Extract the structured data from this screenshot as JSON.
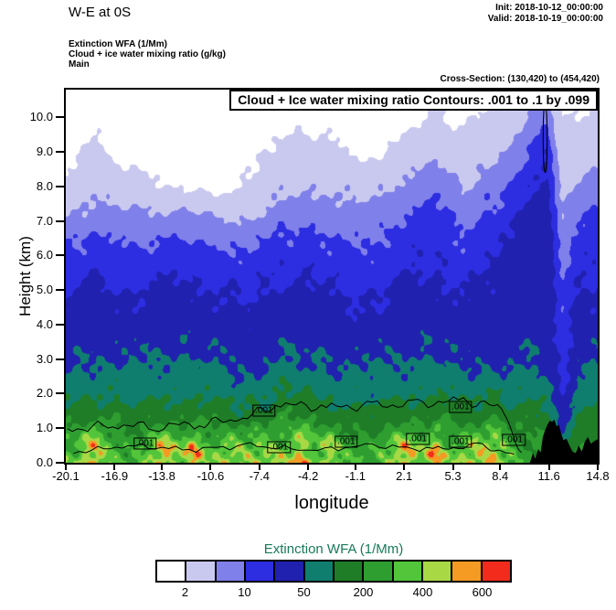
{
  "header": {
    "title": "W-E at 0S",
    "init": "Init: 2018-10-12_00:00:00",
    "valid": "Valid: 2018-10-19_00:00:00",
    "field1": "Extinction WFA  (1/Mm)",
    "field2": "Cloud + ice water mixing ratio  (g/kg)",
    "field3": "Main",
    "cross_section": "Cross-Section: (130,420) to (454,420)"
  },
  "plot": {
    "inner_title": "Cloud + Ice water mixing ratio Contours: .001 to .1 by .099",
    "xlabel": "longitude",
    "ylabel": "Height (km)"
  },
  "colorbar": {
    "title": "Extinction WFA  (1/Mm)",
    "title_color": "#177a58",
    "labels": [
      "2",
      "10",
      "50",
      "200",
      "400",
      "600"
    ]
  },
  "chart_data": {
    "type": "filled-contour",
    "field_name": "Extinction WFA (1/Mm)",
    "overlay_field": "Cloud + Ice water mixing ratio contours .001 to .1 by .099",
    "xlabel": "longitude",
    "ylabel": "Height (km)",
    "xlim": [
      -20.1,
      14.8
    ],
    "ylim": [
      0,
      10.8
    ],
    "xticks": [
      -20.1,
      -16.9,
      -13.8,
      -10.6,
      -7.4,
      -4.2,
      -1.1,
      2.1,
      5.3,
      8.4,
      11.6,
      14.8
    ],
    "yticks": [
      0,
      1,
      2,
      3,
      4,
      5,
      6,
      7,
      8,
      9,
      10
    ],
    "levels": [
      2,
      5,
      10,
      20,
      50,
      100,
      200,
      300,
      400,
      500,
      600
    ],
    "palette": [
      "#ffffff",
      "#c9c9f0",
      "#8080ea",
      "#2d2de2",
      "#2121b0",
      "#0f7e6e",
      "#1e7d26",
      "#2e9e30",
      "#52c53a",
      "#a8d945",
      "#f59a23",
      "#f22b1d"
    ],
    "grid": {
      "lon": [
        -20.1,
        -18,
        -16,
        -14,
        -12,
        -10,
        -8,
        -6,
        -4,
        -2,
        0,
        2,
        4,
        6,
        8,
        9.5,
        10.5,
        11.5,
        12.5,
        13.5,
        14.8
      ],
      "height": [
        0,
        0.5,
        1,
        1.5,
        2,
        2.5,
        3,
        4,
        5,
        6,
        7,
        8,
        9,
        10,
        10.8
      ],
      "values": [
        [
          380,
          460,
          330,
          440,
          460,
          390,
          330,
          460,
          440,
          370,
          330,
          440,
          460,
          370,
          440,
          330,
          270,
          210,
          60,
          210,
          270
        ],
        [
          310,
          430,
          290,
          390,
          430,
          350,
          290,
          430,
          390,
          330,
          290,
          390,
          430,
          330,
          390,
          290,
          230,
          190,
          50,
          190,
          230
        ],
        [
          190,
          270,
          200,
          250,
          270,
          220,
          190,
          270,
          250,
          210,
          190,
          250,
          270,
          210,
          250,
          200,
          170,
          150,
          40,
          150,
          170
        ],
        [
          115,
          155,
          120,
          145,
          155,
          130,
          115,
          155,
          145,
          125,
          115,
          145,
          155,
          125,
          145,
          120,
          115,
          110,
          30,
          110,
          115
        ],
        [
          72,
          96,
          76,
          92,
          96,
          82,
          72,
          96,
          92,
          80,
          72,
          92,
          96,
          80,
          92,
          76,
          74,
          72,
          20,
          72,
          74
        ],
        [
          56,
          72,
          58,
          67,
          72,
          61,
          56,
          72,
          67,
          59,
          56,
          67,
          72,
          59,
          67,
          59,
          57,
          56,
          15,
          56,
          57
        ],
        [
          41,
          53,
          43,
          49,
          53,
          45,
          41,
          53,
          49,
          43,
          41,
          49,
          53,
          43,
          49,
          45,
          45,
          45,
          12,
          43,
          45
        ],
        [
          27,
          35,
          29,
          33,
          35,
          31,
          27,
          35,
          33,
          29,
          27,
          33,
          35,
          29,
          35,
          35,
          37,
          39,
          10,
          29,
          31
        ],
        [
          17,
          24,
          18,
          22,
          24,
          20,
          17,
          24,
          22,
          18,
          17,
          24,
          26,
          20,
          26,
          31,
          35,
          37,
          9,
          21,
          23
        ],
        [
          12,
          15,
          12,
          14,
          15,
          13,
          11,
          15,
          14,
          12,
          12,
          16,
          18,
          13,
          18,
          25,
          31,
          35,
          8,
          15,
          17
        ],
        [
          6,
          8,
          6,
          7,
          7,
          6,
          5,
          8,
          9,
          7,
          8,
          11,
          13,
          9,
          13,
          19,
          27,
          31,
          6,
          9,
          11
        ],
        [
          3,
          4,
          3,
          2.4,
          1.5,
          1.5,
          2.5,
          4,
          5,
          4,
          4,
          6,
          8,
          5,
          8,
          12,
          21,
          27,
          4,
          5,
          7
        ],
        [
          1.5,
          2.6,
          1.5,
          1.2,
          1,
          1,
          1.5,
          2.6,
          3,
          2.6,
          1.5,
          3,
          4,
          3,
          4,
          7,
          12,
          19,
          2.5,
          3,
          4
        ],
        [
          1,
          1.6,
          1,
          1,
          1,
          1,
          1,
          1.6,
          1.6,
          1.2,
          1,
          1.2,
          2.6,
          1.6,
          2.6,
          4,
          6,
          8,
          2,
          2,
          2.6
        ],
        [
          0.8,
          1,
          0.8,
          0.8,
          0.8,
          0.8,
          0.8,
          1,
          1,
          0.8,
          0.8,
          1,
          1.6,
          1,
          1.6,
          2.6,
          3,
          4,
          1.6,
          1.6,
          1.6
        ]
      ]
    },
    "terrain": [
      [
        10.35,
        0
      ],
      [
        10.55,
        0.28
      ],
      [
        10.7,
        0.12
      ],
      [
        10.9,
        0.4
      ],
      [
        11.05,
        0.3
      ],
      [
        11.2,
        0.75
      ],
      [
        11.35,
        0.95
      ],
      [
        11.5,
        1.1
      ],
      [
        11.65,
        1.22
      ],
      [
        11.8,
        1.18
      ],
      [
        11.95,
        1.25
      ],
      [
        12.1,
        1.05
      ],
      [
        12.25,
        1.1
      ],
      [
        12.4,
        0.85
      ],
      [
        12.55,
        0.65
      ],
      [
        12.75,
        0.7
      ],
      [
        12.95,
        0.5
      ],
      [
        13.15,
        0.32
      ],
      [
        13.35,
        0.28
      ],
      [
        13.55,
        0.5
      ],
      [
        13.75,
        0.32
      ],
      [
        13.95,
        0.6
      ],
      [
        14.15,
        0.75
      ],
      [
        14.35,
        0.55
      ],
      [
        14.55,
        0.62
      ],
      [
        14.8,
        0.68
      ],
      [
        14.8,
        0
      ]
    ],
    "cloud_contours": {
      "paths": [
        {
          "amp": 0.16,
          "anchors": [
            [
              -20,
              0.95
            ],
            [
              -17,
              1.1
            ],
            [
              -14,
              1.05
            ],
            [
              -11,
              1.15
            ],
            [
              -8.8,
              1.25
            ],
            [
              -6,
              1.7
            ],
            [
              -3,
              1.6
            ],
            [
              0,
              1.65
            ],
            [
              3,
              1.7
            ],
            [
              6,
              1.8
            ],
            [
              8.5,
              1.6
            ],
            [
              9.8,
              0.3
            ]
          ]
        },
        {
          "amp": 0.09,
          "anchors": [
            [
              -19.6,
              0.3
            ],
            [
              -16,
              0.5
            ],
            [
              -12,
              0.38
            ],
            [
              -8,
              0.5
            ],
            [
              -4,
              0.36
            ],
            [
              0,
              0.5
            ],
            [
              4,
              0.38
            ],
            [
              7,
              0.5
            ],
            [
              9.3,
              0.25
            ]
          ]
        }
      ],
      "loop": {
        "lon": 11.35,
        "h": 9.4,
        "rlon": 0.13,
        "rh": 1.0
      }
    },
    "contour_labels": [
      {
        "lon": -14.9,
        "h": 0.55,
        "text": ".001"
      },
      {
        "lon": -7.1,
        "h": 1.5,
        "text": ".001"
      },
      {
        "lon": -6.1,
        "h": 0.45,
        "text": ".001"
      },
      {
        "lon": -1.7,
        "h": 0.6,
        "text": ".001"
      },
      {
        "lon": 3.0,
        "h": 0.68,
        "text": ".001"
      },
      {
        "lon": 5.8,
        "h": 1.62,
        "text": ".001"
      },
      {
        "lon": 5.8,
        "h": 0.6,
        "text": ".001"
      },
      {
        "lon": 9.3,
        "h": 0.66,
        "text": ".001"
      }
    ]
  }
}
